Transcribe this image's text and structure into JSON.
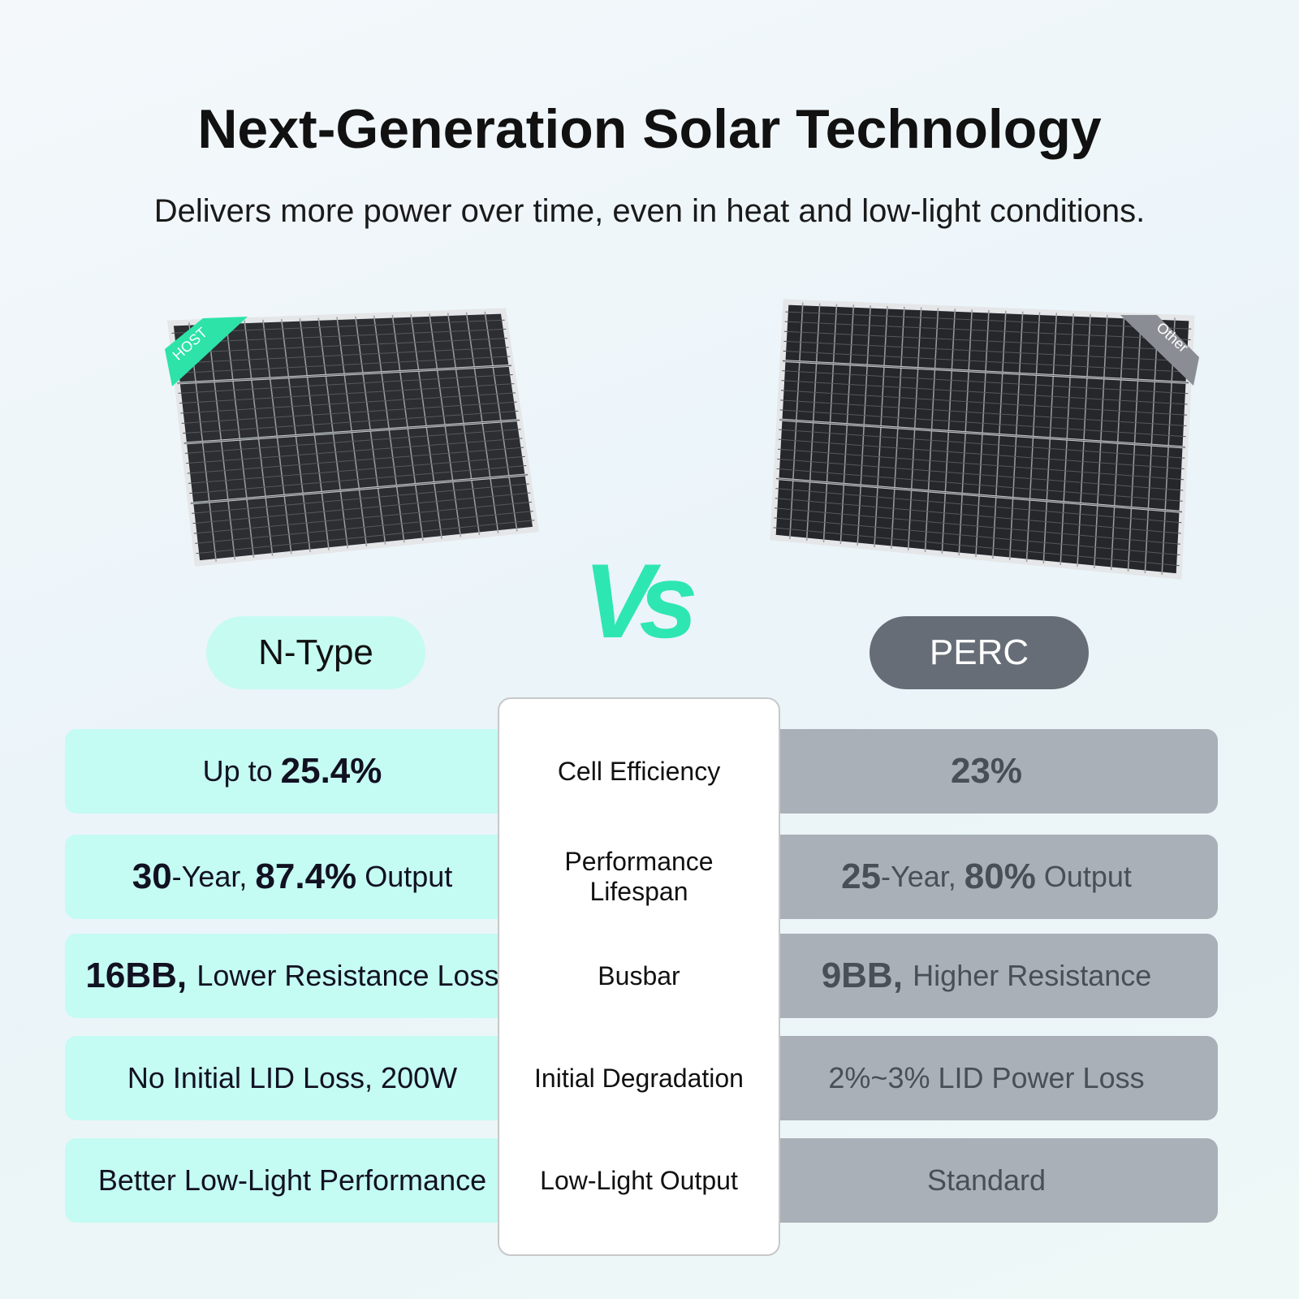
{
  "header": {
    "title": "Next-Generation Solar Technology",
    "subtitle": "Delivers more power over time, even in heat and low-light conditions."
  },
  "panels": {
    "left_badge": "HOST",
    "right_badge": "Other"
  },
  "versus": "Vs",
  "columns": {
    "left": "N-Type",
    "right": "PERC"
  },
  "rows": [
    {
      "feature": "Cell Efficiency",
      "left": [
        {
          "text": "Up to ",
          "bold": false
        },
        {
          "text": "25.4%",
          "bold": true
        }
      ],
      "right": [
        {
          "text": "23%",
          "bold": true
        }
      ]
    },
    {
      "feature": "Performance Lifespan",
      "left": [
        {
          "text": "30",
          "bold": true
        },
        {
          "text": "-Year, ",
          "bold": false
        },
        {
          "text": "87.4%",
          "bold": true
        },
        {
          "text": " Output",
          "bold": false
        }
      ],
      "right": [
        {
          "text": "25",
          "bold": true
        },
        {
          "text": "-Year, ",
          "bold": false
        },
        {
          "text": "80%",
          "bold": true
        },
        {
          "text": " Output",
          "bold": false
        }
      ]
    },
    {
      "feature": "Busbar",
      "left": [
        {
          "text": "16BB, ",
          "bold": true
        },
        {
          "text": "Lower Resistance Loss",
          "bold": false
        }
      ],
      "right": [
        {
          "text": "9BB, ",
          "bold": true
        },
        {
          "text": "Higher Resistance",
          "bold": false
        }
      ]
    },
    {
      "feature": "Initial Degradation",
      "left": [
        {
          "text": "No Initial LID Loss, 200W",
          "bold": false
        }
      ],
      "right": [
        {
          "text": "2%~3% LID Power Loss",
          "bold": false
        }
      ]
    },
    {
      "feature": "Low-Light Output",
      "left": [
        {
          "text": "Better Low-Light Performance",
          "bold": false
        }
      ],
      "right": [
        {
          "text": "Standard",
          "bold": false
        }
      ]
    }
  ]
}
